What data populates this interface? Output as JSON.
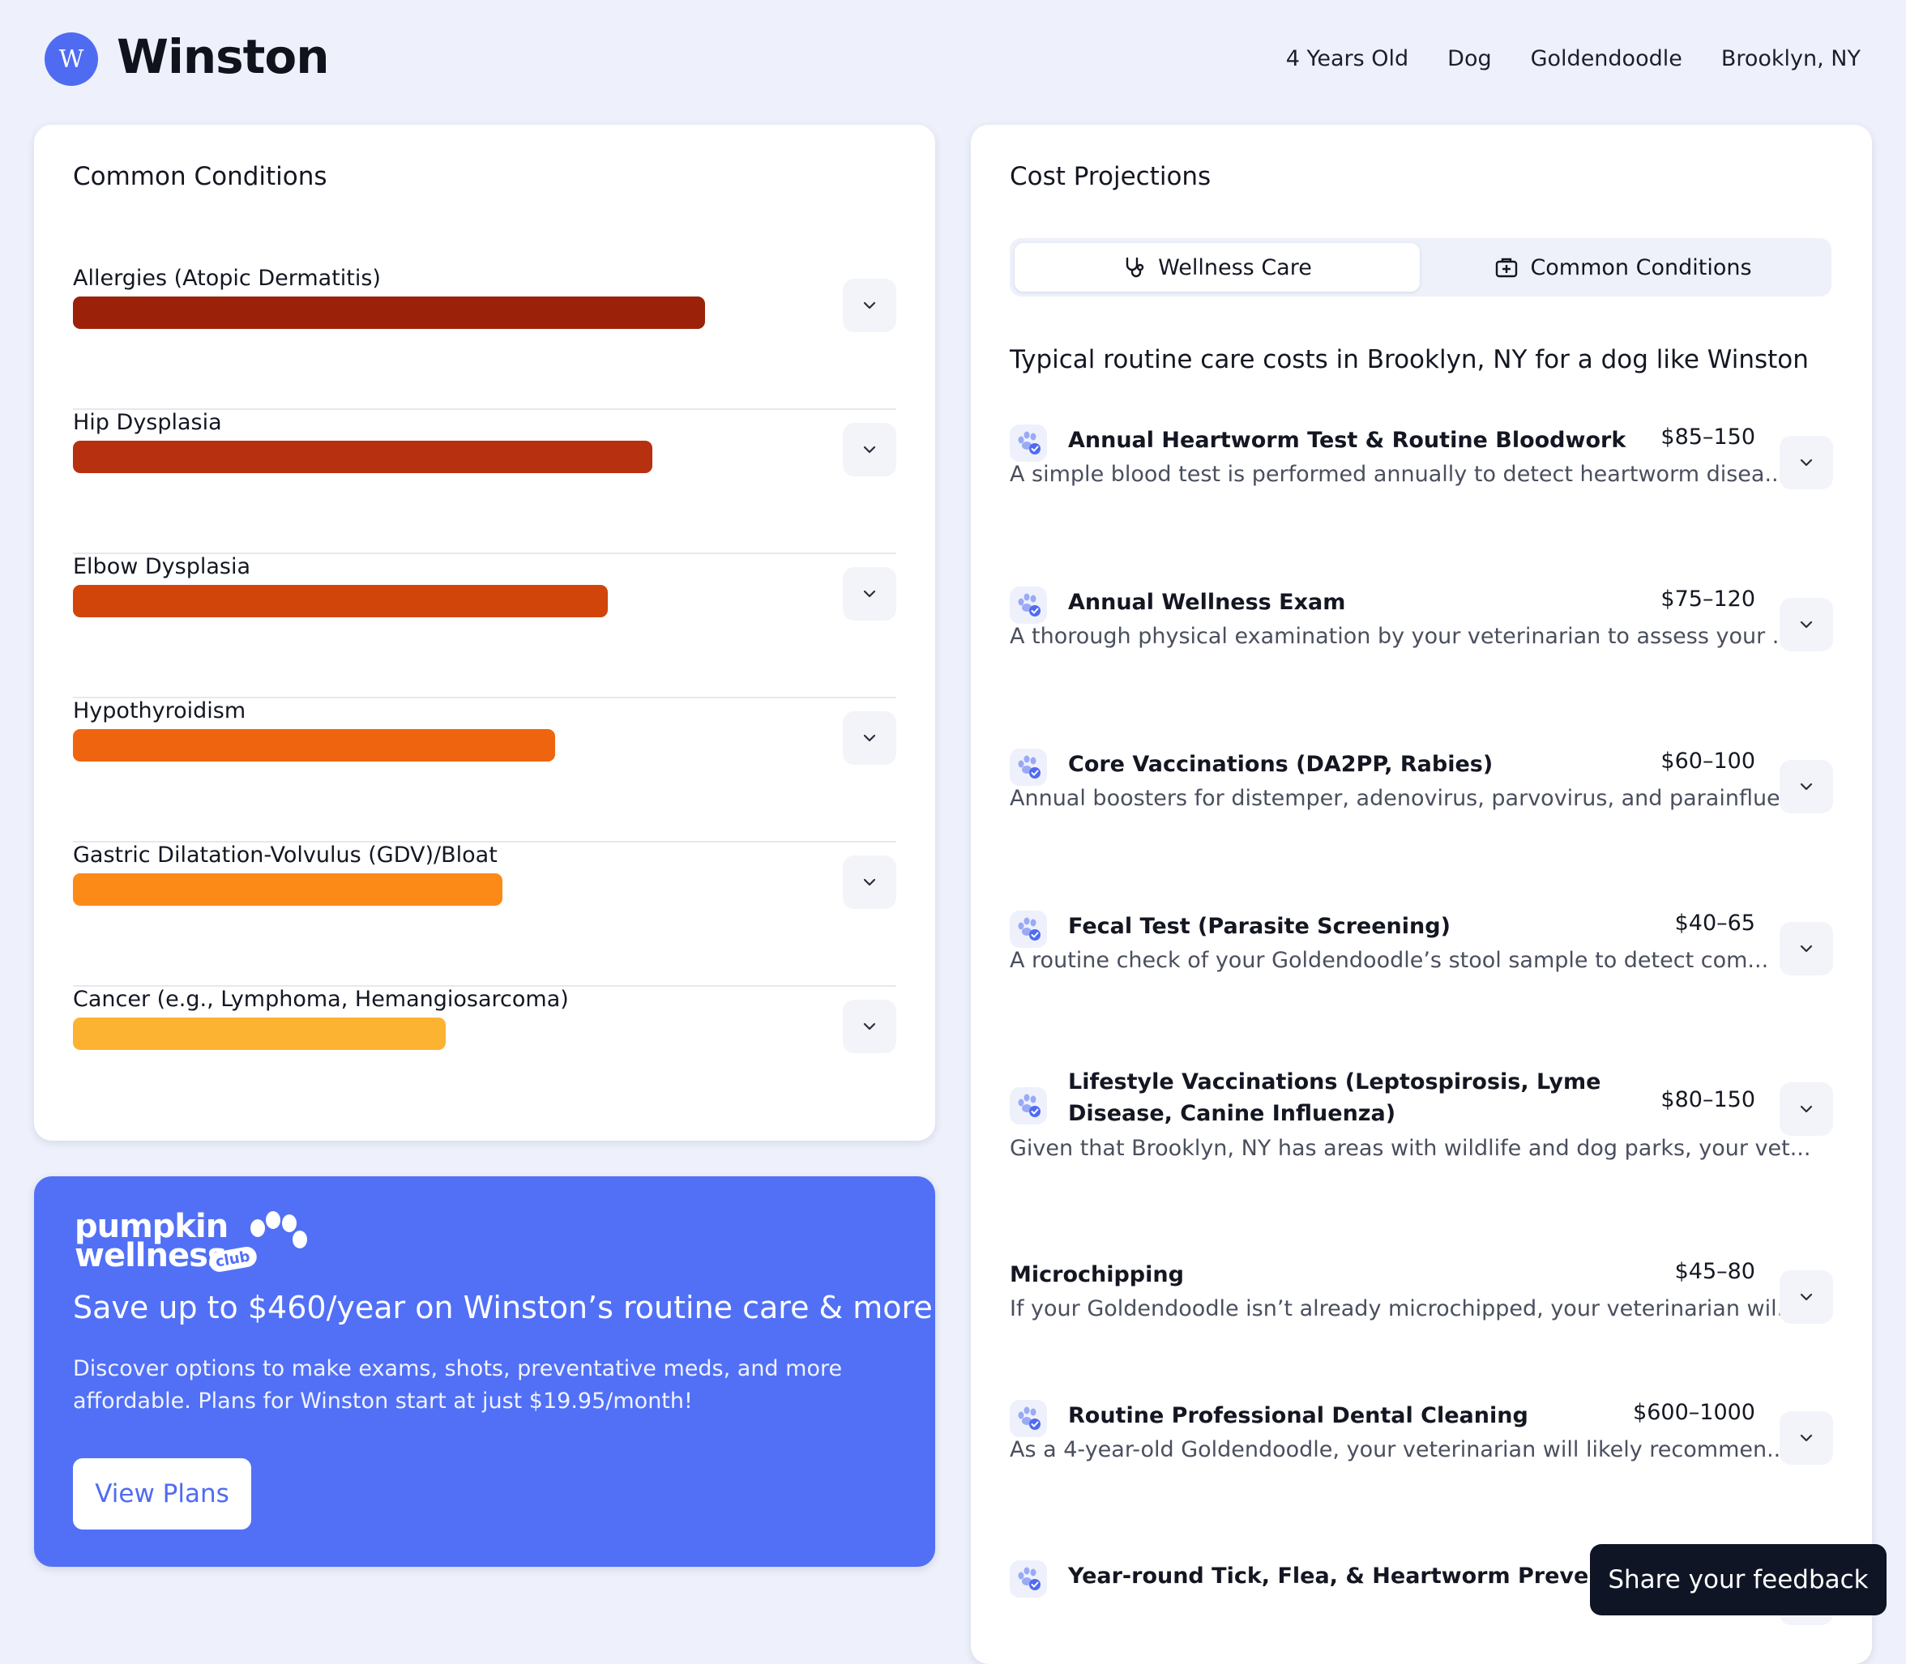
{
  "header": {
    "avatar_letter": "W",
    "pet_name": "Winston",
    "meta": [
      "4 Years Old",
      "Dog",
      "Goldendoodle",
      "Brooklyn, NY"
    ]
  },
  "conditions": {
    "title": "Common Conditions",
    "items": [
      {
        "label": "Allergies (Atopic Dermatitis)",
        "level": 0.78,
        "color": "#9b2209"
      },
      {
        "label": "Hip Dysplasia",
        "level": 0.715,
        "color": "#b7300f"
      },
      {
        "label": "Elbow Dysplasia",
        "level": 0.66,
        "color": "#d1450a"
      },
      {
        "label": "Hypothyroidism",
        "level": 0.595,
        "color": "#ef640f"
      },
      {
        "label": "Gastric Dilatation-Volvulus (GDV)/Bloat",
        "level": 0.53,
        "color": "#fb8a17"
      },
      {
        "label": "Cancer (e.g., Lymphoma, Hemangiosarcoma)",
        "level": 0.46,
        "color": "#fdb332"
      }
    ]
  },
  "promo": {
    "logo_line1": "pumpkin",
    "logo_line2": "wellness",
    "logo_badge": "club",
    "headline": "Save up to $460/year on Winston’s routine care & more",
    "body": "Discover options to make exams, shots, preventative meds, and more affordable. Plans for Winston start at just $19.95/month!",
    "button": "View Plans",
    "color": "#5170f6"
  },
  "cost": {
    "title": "Cost Projections",
    "tabs": [
      {
        "label": "Wellness Care",
        "icon": "stethoscope-icon",
        "active": true
      },
      {
        "label": "Common Conditions",
        "icon": "medical-kit-icon",
        "active": false
      }
    ],
    "subtitle": "Typical routine care costs in Brooklyn, NY for a dog like Winston",
    "items": [
      {
        "name": "Annual Heartworm Test & Routine Bloodwork",
        "price": "$85–150",
        "desc": "A simple blood test is performed annually to detect heartworm disea...",
        "icon": "paw-check-icon"
      },
      {
        "name": "Annual Wellness Exam",
        "price": "$75–120",
        "desc": "A thorough physical examination by your veterinarian to assess your ...",
        "icon": "paw-check-icon"
      },
      {
        "name": "Core Vaccinations (DA2PP, Rabies)",
        "price": "$60–100",
        "desc": "Annual boosters for distemper, adenovirus, parvovirus, and parainflue...",
        "icon": "paw-check-icon"
      },
      {
        "name": "Fecal Test (Parasite Screening)",
        "price": "$40–65",
        "desc": "A routine check of your Goldendoodle’s stool sample to detect com...",
        "icon": "paw-check-icon"
      },
      {
        "name": "Lifestyle Vaccinations (Leptospirosis, Lyme Disease, Canine Influenza)",
        "price": "$80–150",
        "desc": "Given that Brooklyn, NY has areas with wildlife and dog parks, your vet...",
        "icon": "paw-check-icon"
      },
      {
        "name": "Microchipping",
        "price": "$45–80",
        "desc": "If your Goldendoodle isn’t already microchipped, your veterinarian wil...",
        "icon": ""
      },
      {
        "name": "Routine Professional Dental Cleaning",
        "price": "$600–1000",
        "desc": "As a 4-year-old Goldendoodle, your veterinarian will likely recommen...",
        "icon": "paw-check-icon"
      },
      {
        "name": "Year-round Tick, Flea, & Heartworm Prevention",
        "price": "",
        "desc": "",
        "icon": "paw-check-icon"
      }
    ]
  },
  "feedback": {
    "label": "Share your feedback"
  }
}
